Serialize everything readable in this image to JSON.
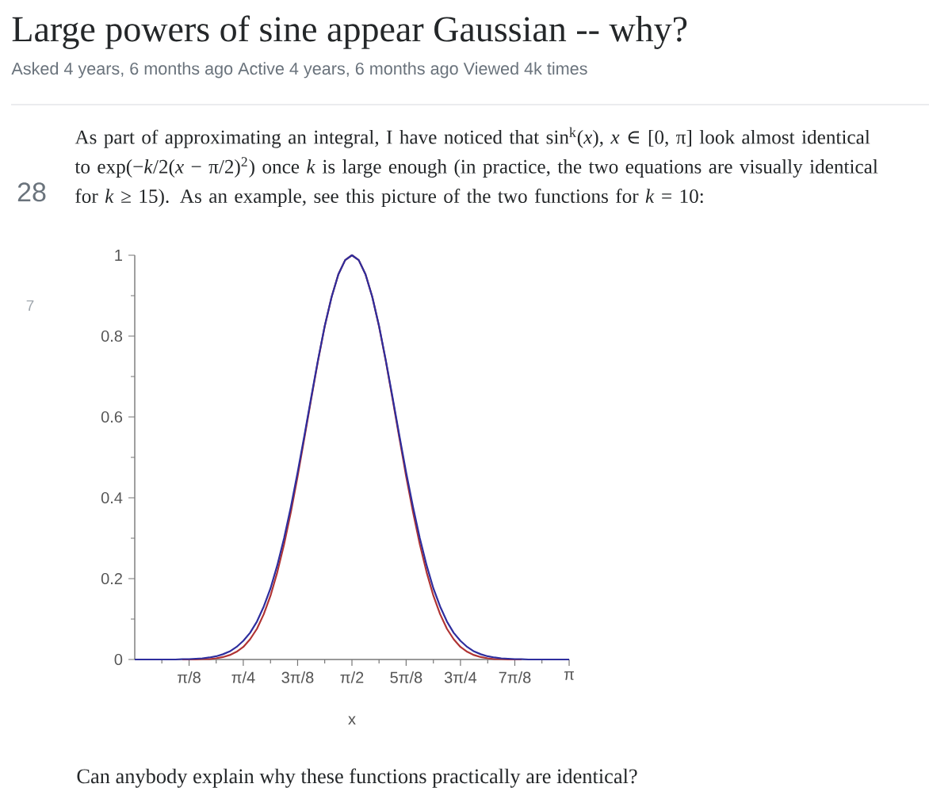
{
  "chart_data": {
    "type": "line",
    "title": "Large powers of sine appear Gaussian -- why?",
    "subtitle": "Asked 4 years, 6 months ago Active 4 years, 6 months ago Viewed 4k times",
    "xlabel": "x",
    "annotations": [
      "As part of approximating an integral, I have noticed that sin$^{k}$(*x*), *x* ∈ [0, π] look almost identical to exp(−*k*/2(*x* − π/2)$^{2}$) once *k* is large enough (in practice, the two equations are visually identical for *k* ≥ 15). As an example, see this picture of the two functions for *k* = 10:",
      "28",
      "7",
      "Can anybody explain why these functions practically are identical?"
    ],
    "x": [
      0,
      0.049,
      0.098,
      0.147,
      0.196,
      0.245,
      0.295,
      0.344,
      0.393,
      0.442,
      0.491,
      0.54,
      0.589,
      0.638,
      0.687,
      0.736,
      0.785,
      0.834,
      0.884,
      0.933,
      0.982,
      1.031,
      1.08,
      1.129,
      1.178,
      1.227,
      1.276,
      1.325,
      1.374,
      1.424,
      1.473,
      1.522,
      1.571,
      1.62,
      1.669,
      1.718,
      1.767,
      1.816,
      1.865,
      1.914,
      1.963,
      2.013,
      2.062,
      2.111,
      2.16,
      2.209,
      2.258,
      2.307,
      2.356,
      2.405,
      2.454,
      2.503,
      2.553,
      2.602,
      2.651,
      2.7,
      2.749,
      2.798,
      2.847,
      2.896,
      2.945,
      2.994,
      3.043,
      3.093,
      3.142
    ],
    "series": [
      {
        "color": "#b03434",
        "values": [
          null,
          null,
          null,
          null,
          null,
          null,
          null,
          0,
          0,
          0,
          0.001,
          0.001,
          0.003,
          0.006,
          0.011,
          0.019,
          0.031,
          0.05,
          0.076,
          0.112,
          0.158,
          0.216,
          0.285,
          0.364,
          0.453,
          0.548,
          0.644,
          0.738,
          0.824,
          0.897,
          0.953,
          0.988,
          1,
          0.988,
          0.953,
          0.897,
          0.824,
          0.738,
          0.644,
          0.548,
          0.453,
          0.364,
          0.285,
          0.216,
          0.158,
          0.112,
          0.076,
          0.05,
          0.031,
          0.019,
          0.011,
          0.006,
          0.003,
          0.001,
          0.001,
          0,
          0,
          0,
          null,
          null,
          null,
          null,
          null,
          null,
          null
        ]
      },
      {
        "color": "#2e2e9e",
        "values": [
          0,
          0,
          0,
          0,
          0,
          0,
          0,
          0.001,
          0.001,
          0.002,
          0.003,
          0.005,
          0.008,
          0.013,
          0.02,
          0.031,
          0.046,
          0.066,
          0.094,
          0.131,
          0.176,
          0.233,
          0.3,
          0.377,
          0.463,
          0.554,
          0.648,
          0.74,
          0.825,
          0.897,
          0.953,
          0.988,
          1,
          0.988,
          0.953,
          0.897,
          0.825,
          0.74,
          0.648,
          0.554,
          0.463,
          0.377,
          0.3,
          0.233,
          0.176,
          0.131,
          0.094,
          0.066,
          0.046,
          0.031,
          0.02,
          0.013,
          0.008,
          0.005,
          0.003,
          0.002,
          0.001,
          0.001,
          0,
          0,
          0,
          0,
          0,
          0,
          0
        ]
      }
    ],
    "xlim": [
      0,
      3.142
    ],
    "ylim": [
      0,
      1
    ],
    "xticks": [
      {
        "value": 0.196,
        "label": null
      },
      {
        "value": 0.393,
        "label": "π/8"
      },
      {
        "value": 0.589,
        "label": null
      },
      {
        "value": 0.785,
        "label": "π/4"
      },
      {
        "value": 0.982,
        "label": null
      },
      {
        "value": 1.178,
        "label": "3π/8"
      },
      {
        "value": 1.374,
        "label": null
      },
      {
        "value": 1.571,
        "label": "π/2"
      },
      {
        "value": 1.767,
        "label": null
      },
      {
        "value": 1.963,
        "label": "5π/8"
      },
      {
        "value": 2.16,
        "label": null
      },
      {
        "value": 2.356,
        "label": "3π/4"
      },
      {
        "value": 2.553,
        "label": null
      },
      {
        "value": 2.749,
        "label": "7π/8"
      },
      {
        "value": 2.945,
        "label": null
      },
      {
        "value": 3.142,
        "label": "π"
      }
    ],
    "yticks": [
      0,
      {
        "value": 0.1,
        "label": null
      },
      0.2,
      {
        "value": 0.3,
        "label": null
      },
      0.4,
      {
        "value": 0.5,
        "label": null
      },
      0.6,
      {
        "value": 0.7,
        "label": null
      },
      0.8,
      {
        "value": 0.9,
        "label": null
      },
      1
    ],
    "marker": "none",
    "line_style": "solid"
  }
}
